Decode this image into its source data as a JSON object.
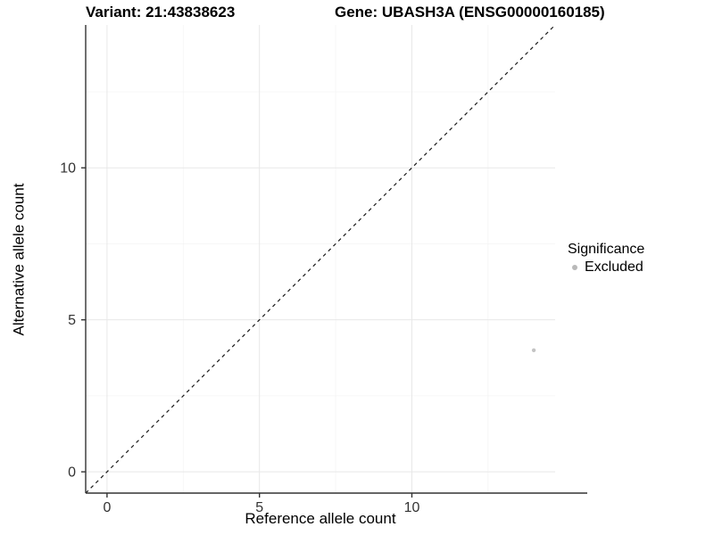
{
  "header": {
    "title_variant": "Variant: 21:43838623",
    "title_gene": "Gene: UBASH3A (ENSG00000160185)"
  },
  "legend": {
    "title": "Significance",
    "items": [
      {
        "label": "Excluded",
        "color": "#b9b9b9"
      }
    ]
  },
  "chart_data": {
    "type": "scatter",
    "title": "Variant: 21:43838623 | Gene: UBASH3A (ENSG00000160185)",
    "xlabel": "Reference allele count",
    "ylabel": "Alternative allele count",
    "xlim": [
      -0.7,
      14.7
    ],
    "ylim": [
      -0.7,
      14.7
    ],
    "x_ticks": [
      0,
      5,
      10
    ],
    "y_ticks": [
      0,
      5,
      10
    ],
    "x_minor_breaks": [
      2.5,
      7.5,
      12.5
    ],
    "y_minor_breaks": [
      2.5,
      7.5,
      12.5
    ],
    "grid": "major+minor",
    "legend_position": "right",
    "series": [
      {
        "name": "Excluded",
        "color": "#c4c4c4",
        "point_radius": 2.2,
        "points": [
          {
            "x": 14,
            "y": 4
          }
        ]
      }
    ],
    "reference_line": {
      "type": "identity",
      "slope": 1,
      "intercept": 0,
      "linetype": "dashed",
      "color": "#1a1a1a"
    },
    "colors": {
      "background": "#ffffff",
      "grid_major": "#e8e8e8",
      "grid_minor": "#f4f4f4",
      "axis_line": "#333333",
      "tick_label": "#333333"
    }
  }
}
